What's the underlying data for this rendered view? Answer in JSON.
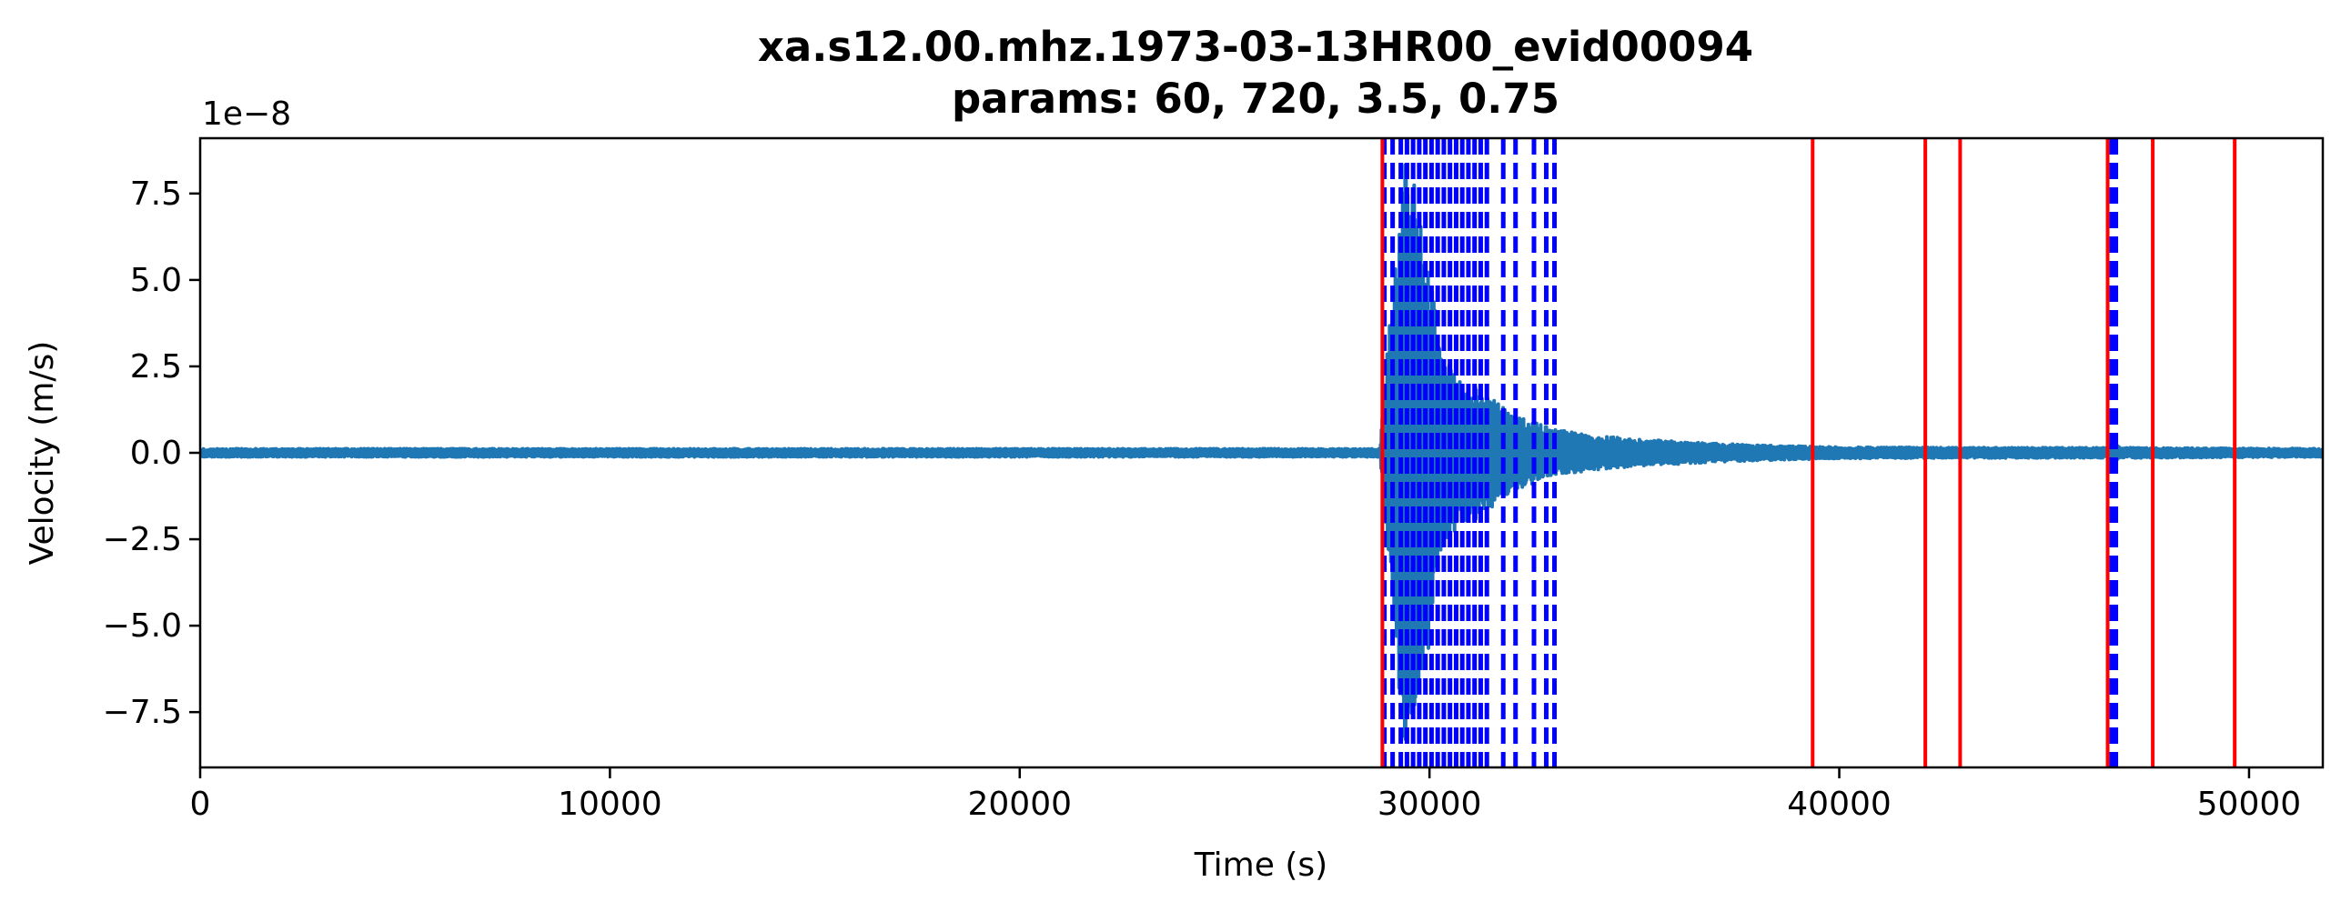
{
  "chart_data": {
    "type": "line",
    "title": "xa.s12.00.mhz.1973-03-13HR00_evid00094",
    "subtitle": "params: 60, 720, 3.5, 0.75",
    "xlabel": "Time (s)",
    "ylabel": "Velocity (m/s)",
    "y_offset_label": "1e−8",
    "xlim": [
      0,
      51800
    ],
    "ylim": [
      -9.1,
      9.1
    ],
    "x_ticks": [
      0,
      10000,
      20000,
      30000,
      40000,
      50000
    ],
    "x_tick_labels": [
      "0",
      "10000",
      "20000",
      "30000",
      "40000",
      "50000"
    ],
    "y_ticks": [
      -7.5,
      -5.0,
      -2.5,
      0.0,
      2.5,
      5.0,
      7.5
    ],
    "y_tick_labels": [
      "−7.5",
      "−5.0",
      "−2.5",
      "0.0",
      "2.5",
      "5.0",
      "7.5"
    ],
    "grid": false,
    "colors": {
      "signal": "#1f77b4",
      "trigger_on": "#ff0000",
      "trigger_off": "#0000ff"
    },
    "signal": {
      "name": "velocity",
      "noise_amplitude": 0.12,
      "envelope": [
        [
          0,
          0.12
        ],
        [
          28800,
          0.12
        ],
        [
          28850,
          1.2
        ],
        [
          29000,
          3.4
        ],
        [
          29200,
          6.0
        ],
        [
          29400,
          8.8
        ],
        [
          29700,
          7.5
        ],
        [
          30000,
          5.5
        ],
        [
          30300,
          3.0
        ],
        [
          30700,
          2.2
        ],
        [
          31200,
          1.9
        ],
        [
          31600,
          1.5
        ],
        [
          32000,
          1.1
        ],
        [
          32500,
          0.9
        ],
        [
          33000,
          0.7
        ],
        [
          34000,
          0.5
        ],
        [
          35000,
          0.4
        ],
        [
          36500,
          0.3
        ],
        [
          38000,
          0.22
        ],
        [
          40000,
          0.17
        ],
        [
          43000,
          0.15
        ],
        [
          46500,
          0.15
        ],
        [
          46700,
          0.22
        ],
        [
          47000,
          0.15
        ],
        [
          51800,
          0.12
        ]
      ]
    },
    "trigger_on_lines": [
      28850,
      39350,
      42100,
      42950,
      46550,
      47650,
      49650
    ],
    "trigger_off_lines": [
      28900,
      29100,
      29300,
      29450,
      29600,
      29750,
      29900,
      30050,
      30200,
      30350,
      30500,
      30650,
      30800,
      30950,
      31100,
      31250,
      31400,
      31800,
      32100,
      32550,
      32850,
      33050,
      46650,
      46700,
      46750
    ]
  }
}
